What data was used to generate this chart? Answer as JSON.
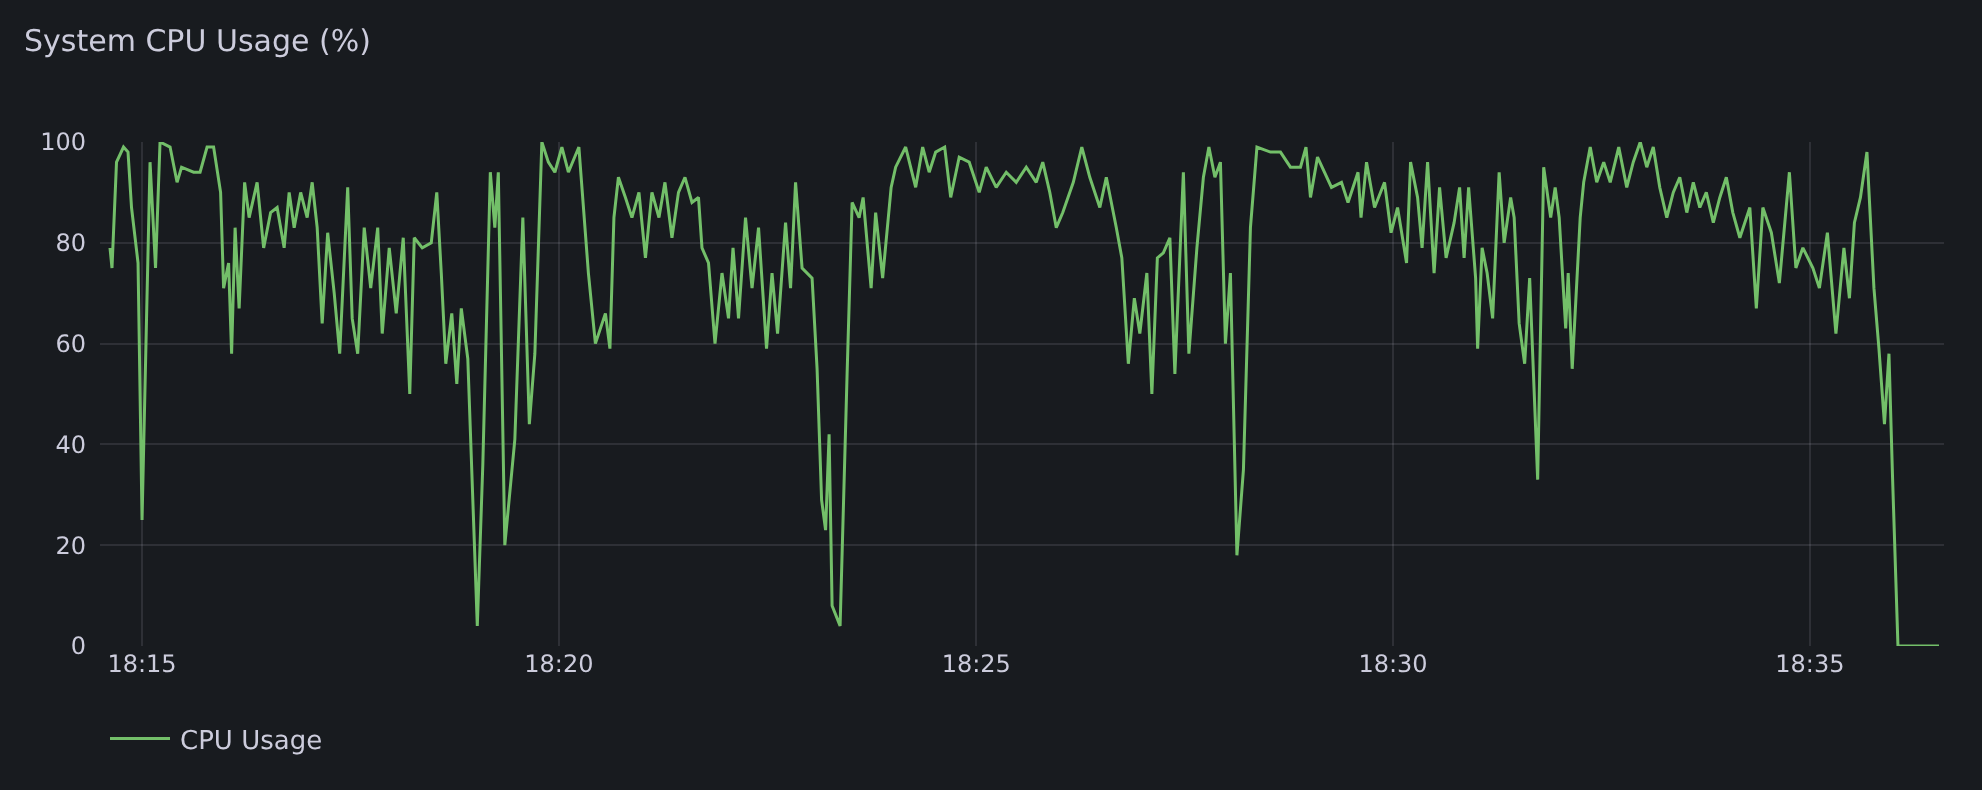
{
  "chart_data": {
    "type": "line",
    "title": "System CPU Usage (%)",
    "x": [
      18.2436,
      18.244,
      18.2449,
      18.2463,
      18.2472,
      18.2479,
      18.2492,
      18.25,
      18.2509,
      18.2516,
      18.2527,
      18.2536,
      18.2556,
      18.257,
      18.2579,
      18.2603,
      18.2616,
      18.263,
      18.2643,
      18.2657,
      18.2663,
      18.2673,
      18.2679,
      18.2686,
      18.2694,
      18.2705,
      18.2714,
      18.273,
      18.2743,
      18.2757,
      18.277,
      18.2784,
      18.2794,
      18.2804,
      18.2817,
      18.283,
      18.284,
      18.285,
      18.286,
      18.2871,
      18.2884,
      18.2895,
      18.2911,
      18.292,
      18.2931,
      18.2944,
      18.2957,
      18.2971,
      18.298,
      18.2994,
      18.3008,
      18.3022,
      18.3035,
      18.3044,
      18.306,
      18.3078,
      18.3089,
      18.3098,
      18.3107,
      18.3119,
      18.3129,
      18.3138,
      18.3151,
      18.317,
      18.3181,
      18.3196,
      18.3205,
      18.3212,
      18.3225,
      18.3245,
      18.3261,
      18.3274,
      18.3285,
      18.3299,
      18.3312,
      18.3325,
      18.3339,
      18.3352,
      18.3373,
      18.3392,
      18.3406,
      18.3426,
      18.3435,
      18.3443,
      18.3452,
      18.3466,
      18.3479,
      18.3493,
      18.3506,
      18.3519,
      18.3533,
      18.3545,
      18.3559,
      18.3572,
      18.3585,
      18.3599,
      18.3612,
      18.3619,
      18.3632,
      18.3645,
      18.3659,
      18.3672,
      18.3681,
      18.3692,
      18.3706,
      18.3719,
      18.3732,
      18.3748,
      18.3759,
      18.377,
      18.3786,
      18.3796,
      18.3806,
      18.3819,
      18.3839,
      18.3849,
      18.3858,
      18.3866,
      18.3873,
      18.3879,
      18.3895,
      18.3909,
      18.3919,
      18.3933,
      18.3941,
      18.3957,
      18.3966,
      18.398,
      18.3997,
      18.4006,
      18.4026,
      18.4046,
      18.406,
      18.4073,
      18.4086,
      18.4104,
      18.4116,
      18.4133,
      18.4153,
      18.4173,
      18.4187,
      18.4207,
      18.4227,
      18.4247,
      18.4267,
      18.4287,
      18.43,
      18.4314,
      18.4327,
      18.434,
      18.4361,
      18.4378,
      18.4394,
      18.4414,
      18.4427,
      18.4447,
      18.4458,
      18.4471,
      18.4483,
      18.4494,
      18.4508,
      18.4518,
      18.4529,
      18.4541,
      18.4554,
      18.4564,
      18.4581,
      18.4592,
      18.4608,
      18.4621,
      18.4632,
      18.4644,
      18.4655,
      18.4665,
      18.4675,
      18.4688,
      18.4701,
      18.4715,
      18.4728,
      18.4755,
      18.4775,
      18.4795,
      18.4815,
      18.4826,
      18.4835,
      18.4849,
      18.4877,
      18.4897,
      18.491,
      18.493,
      18.4936,
      18.4947,
      18.4963,
      18.4983,
      18.4996,
      18.5009,
      18.5027,
      18.5035,
      18.5049,
      18.5058,
      18.5069,
      18.5082,
      18.5093,
      18.5106,
      18.5122,
      18.5133,
      18.5142,
      18.5151,
      18.5165,
      18.5169,
      18.5178,
      18.5188,
      18.5199,
      18.5212,
      18.5222,
      18.5235,
      18.5242,
      18.5252,
      18.5263,
      18.5273,
      18.5289,
      18.5301,
      18.5315,
      18.5324,
      18.5332,
      18.5345,
      18.535,
      18.5358,
      18.5374,
      18.5381,
      18.5394,
      18.5407,
      18.5421,
      18.5434,
      18.5451,
      18.5467,
      18.548,
      18.5494,
      18.5507,
      18.552,
      18.5533,
      18.5547,
      18.556,
      18.5573,
      18.5587,
      18.56,
      18.5613,
      18.5626,
      18.564,
      18.5653,
      18.5666,
      18.5679,
      18.5693,
      18.5713,
      18.5726,
      18.5739,
      18.5756,
      18.5772,
      18.5792,
      18.5805,
      18.5819,
      18.5839,
      18.5852,
      18.5868,
      18.5885,
      18.5901,
      18.5912,
      18.5922,
      18.5934,
      18.5947,
      18.5961,
      18.5971,
      18.5982,
      18.5991,
      18.5998,
      18.6009,
      18.6024,
      18.6058,
      18.6091
    ],
    "series": [
      {
        "name": "CPU Usage",
        "color": "#73bf69",
        "values": [
          79,
          75,
          96,
          99,
          98,
          87,
          76,
          25,
          65,
          96,
          75,
          100,
          99,
          92,
          95,
          94,
          94,
          99,
          99,
          90,
          71,
          76,
          58,
          83,
          67,
          92,
          85,
          92,
          79,
          86,
          87,
          79,
          90,
          83,
          90,
          85,
          92,
          83,
          64,
          82,
          70,
          58,
          91,
          65,
          58,
          83,
          71,
          83,
          62,
          79,
          66,
          81,
          50,
          81,
          79,
          80,
          90,
          74,
          56,
          66,
          52,
          67,
          57,
          4,
          36,
          94,
          83,
          94,
          20,
          41,
          85,
          44,
          58,
          100,
          96,
          94,
          99,
          94,
          99,
          74,
          60,
          66,
          59,
          85,
          93,
          89,
          85,
          90,
          77,
          90,
          85,
          92,
          81,
          90,
          93,
          88,
          89,
          79,
          76,
          60,
          74,
          65,
          79,
          65,
          85,
          71,
          83,
          59,
          74,
          62,
          84,
          71,
          92,
          75,
          73,
          55,
          29,
          23,
          42,
          8,
          4,
          54,
          88,
          85,
          89,
          71,
          86,
          73,
          91,
          95,
          99,
          91,
          99,
          94,
          98,
          99,
          89,
          97,
          96,
          90,
          95,
          91,
          94,
          92,
          95,
          92,
          96,
          90,
          83,
          86,
          92,
          99,
          93,
          87,
          93,
          83,
          77,
          56,
          69,
          62,
          74,
          50,
          77,
          78,
          81,
          54,
          94,
          58,
          79,
          93,
          99,
          93,
          96,
          60,
          74,
          18,
          35,
          83,
          99,
          98,
          98,
          95,
          95,
          99,
          89,
          97,
          91,
          92,
          88,
          94,
          85,
          96,
          87,
          92,
          82,
          87,
          76,
          96,
          89,
          79,
          96,
          74,
          91,
          77,
          84,
          91,
          77,
          91,
          73,
          59,
          79,
          74,
          65,
          94,
          80,
          89,
          85,
          64,
          56,
          73,
          33,
          95,
          85,
          91,
          85,
          63,
          74,
          55,
          85,
          92,
          99,
          92,
          96,
          92,
          99,
          91,
          96,
          100,
          95,
          99,
          91,
          85,
          90,
          93,
          86,
          92,
          87,
          90,
          84,
          89,
          93,
          86,
          81,
          87,
          67,
          87,
          82,
          72,
          94,
          75,
          79,
          75,
          71,
          82,
          62,
          79,
          69,
          84,
          89,
          98,
          71,
          59,
          44,
          58,
          34,
          0,
          0,
          0,
          0
        ]
      }
    ],
    "xlim": [
      18.2416,
      18.6101
    ],
    "ylim": [
      0,
      100
    ],
    "xticks": [
      {
        "value": 18.25,
        "label": "18:15"
      },
      {
        "value": 18.3333,
        "label": "18:20"
      },
      {
        "value": 18.4167,
        "label": "18:25"
      },
      {
        "value": 18.5,
        "label": "18:30"
      },
      {
        "value": 18.5833,
        "label": "18:35"
      }
    ],
    "yticks": [
      0,
      20,
      40,
      60,
      80,
      100
    ],
    "grid": true,
    "legend": "bottom left",
    "marker": "none",
    "line_style": "solid"
  }
}
